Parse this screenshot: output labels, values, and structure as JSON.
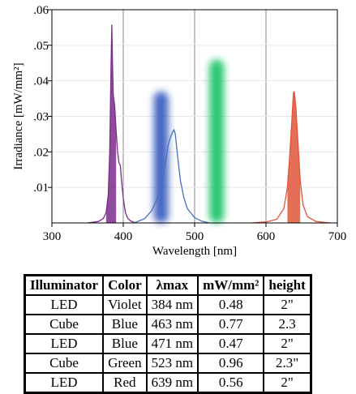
{
  "chart_data": {
    "type": "area",
    "xlabel": "Wavelength [nm]",
    "ylabel": "Irradiance [mW/mm²]",
    "xlim": [
      300,
      700
    ],
    "ylim": [
      0,
      0.06
    ],
    "x_ticks": [
      "300",
      "400",
      "500",
      "600",
      "700"
    ],
    "y_ticks": [
      ".01",
      ".02",
      ".03",
      ".04",
      ".05",
      ".06"
    ],
    "vertical_gridlines_at": [
      400,
      500,
      600
    ],
    "series": [
      {
        "color": "#7b2d8b",
        "x": [
          350,
          365,
          372,
          376,
          379,
          381,
          383,
          384,
          385,
          386,
          388,
          390,
          392,
          394,
          396,
          398,
          400,
          403,
          406,
          410,
          415
        ],
        "y": [
          0,
          0.0004,
          0.0012,
          0.003,
          0.008,
          0.02,
          0.045,
          0.0558,
          0.044,
          0.036,
          0.033,
          0.026,
          0.02,
          0.017,
          0.016,
          0.011,
          0.007,
          0.003,
          0.0014,
          0.0006,
          0.0002
        ]
      },
      {
        "color": "#4a6fc0",
        "x": [
          415,
          430,
          440,
          450,
          455,
          460,
          463,
          466,
          469,
          471,
          473,
          476,
          480,
          485,
          490,
          500,
          510,
          520
        ],
        "y": [
          0,
          0.0012,
          0.0035,
          0.008,
          0.012,
          0.018,
          0.022,
          0.024,
          0.0255,
          0.0262,
          0.025,
          0.019,
          0.012,
          0.007,
          0.004,
          0.0015,
          0.0005,
          0
        ]
      },
      {
        "color": "#e0553a",
        "x": [
          580,
          600,
          615,
          625,
          630,
          633,
          636,
          638,
          639,
          640,
          642,
          645,
          648,
          652,
          658,
          670,
          690
        ],
        "y": [
          0,
          0.0003,
          0.001,
          0.004,
          0.01,
          0.018,
          0.028,
          0.035,
          0.037,
          0.0365,
          0.032,
          0.022,
          0.012,
          0.005,
          0.0018,
          0.0004,
          0
        ]
      }
    ],
    "bands": [
      {
        "color": "#3d5fbf",
        "center": 453,
        "peak": 0.037
      },
      {
        "color": "#1ec46a",
        "center": 531,
        "peak": 0.046
      }
    ]
  },
  "table": {
    "headers": [
      "Illuminator",
      "Color",
      "λmax",
      "mW/mm²",
      "height"
    ],
    "rows": [
      [
        "LED",
        "Violet",
        "384 nm",
        "0.48",
        "2\""
      ],
      [
        "Cube",
        "Blue",
        "463 nm",
        "0.77",
        "2.3"
      ],
      [
        "LED",
        "Blue",
        "471 nm",
        "0.47",
        "2\""
      ],
      [
        "Cube",
        "Green",
        "523 nm",
        "0.96",
        "2.3\""
      ],
      [
        "LED",
        "Red",
        "639 nm",
        "0.56",
        "2\""
      ]
    ]
  }
}
